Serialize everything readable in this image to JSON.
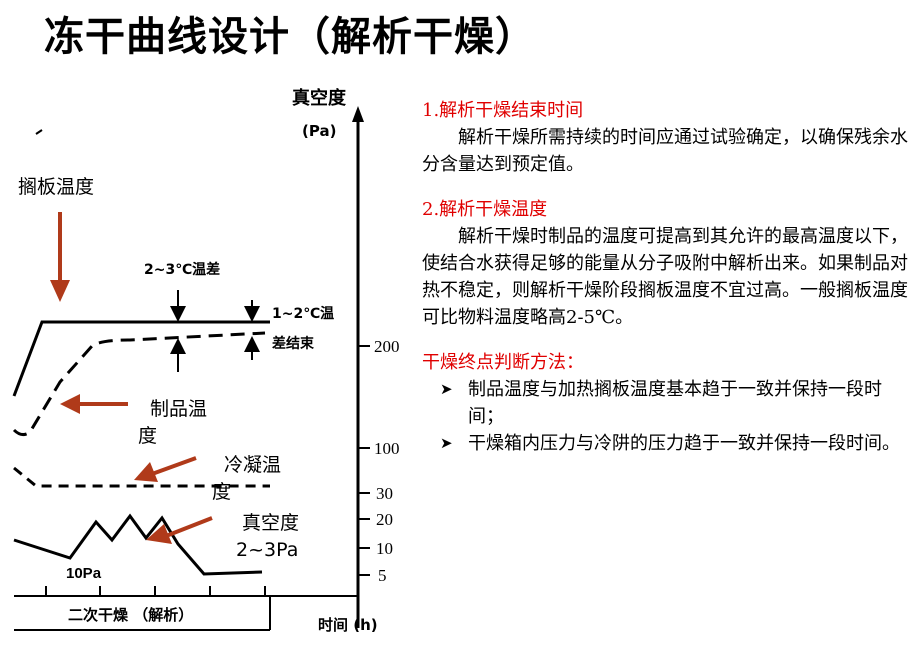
{
  "title": "冻干曲线设计（解析干燥）",
  "chart": {
    "y_axis_title_line1": "真空度",
    "y_axis_title_line2": "(Pa)",
    "y_ticks": [
      "200",
      "100",
      "30",
      "20",
      "10",
      "5"
    ],
    "x_axis_label": "时间 (h)",
    "temp_diff_label": "2~3℃温差",
    "end_label_line1": "1~2℃温",
    "end_label_line2": "差结束",
    "pressure_start_label": "10Pa",
    "phase_label": "二次干燥 （解析）"
  },
  "callouts": {
    "shelf_temp": "搁板温度",
    "product_temp": "制品温度",
    "condenser_temp": "冷凝温度",
    "vacuum": "真空度2~3Pa"
  },
  "text": {
    "h1": "1.解析干燥结束时间",
    "p1": "解析干燥所需持续的时间应通过试验确定，以确保残余水分含量达到预定值。",
    "h2": "2.解析干燥温度",
    "p2": "解析干燥时制品的温度可提高到其允许的最高温度以下，使结合水获得足够的能量从分子吸附中解析出来。如果制品对热不稳定，则解析干燥阶段搁板温度不宜过高。一般搁板温度可比物料温度略高2-5℃。",
    "h3": "干燥终点判断方法：",
    "bullets": [
      "制品温度与加热搁板温度基本趋于一致并保持一段时间；",
      "干燥箱内压力与冷阱的压力趋于一致并保持一段时间。"
    ]
  },
  "colors": {
    "heading": "#e00000",
    "arrow": "#b03a1a"
  }
}
